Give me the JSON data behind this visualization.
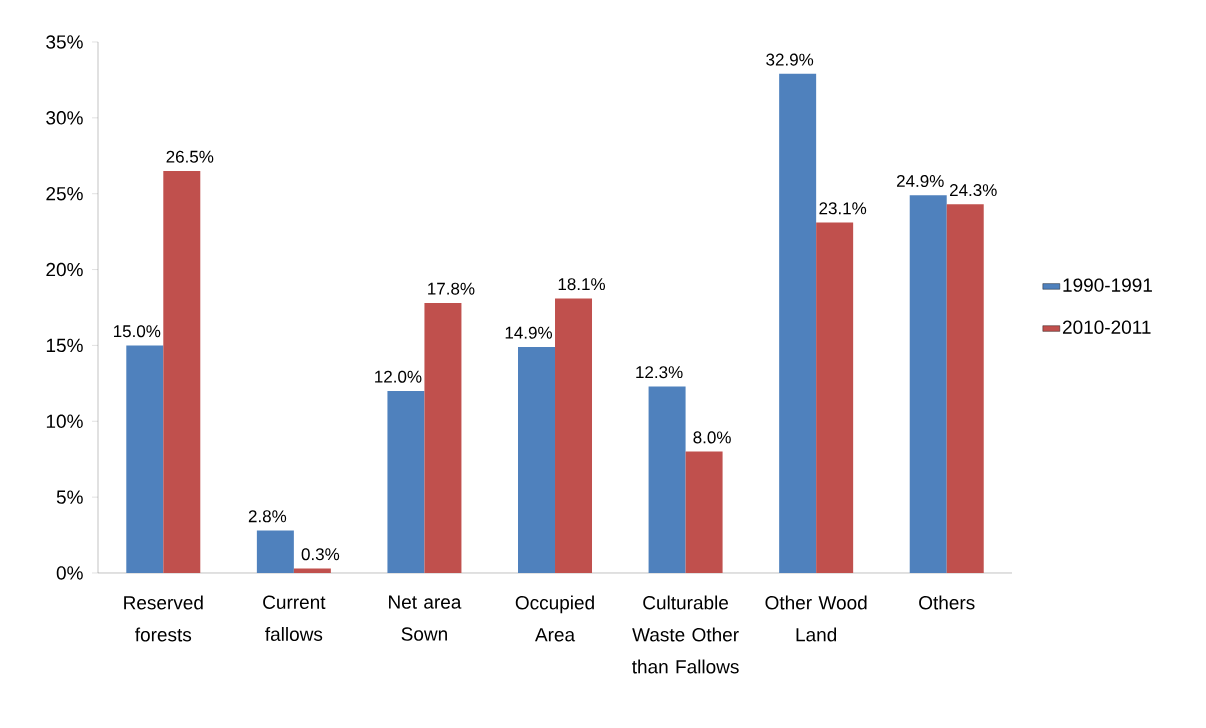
{
  "chart_data": {
    "type": "bar",
    "categories": [
      "Reserved forests",
      "Current fallows",
      "Net area Sown",
      "Occupied Area",
      "Culturable Waste Other than Fallows",
      "Other Wood Land",
      "Others"
    ],
    "series": [
      {
        "name": "1990-1991",
        "color": "#4f81bd",
        "values": [
          15.0,
          2.8,
          12.0,
          14.9,
          12.3,
          32.9,
          24.9
        ],
        "value_labels": [
          "15.0%",
          "2.8%",
          "12.0%",
          "14.9%",
          "12.3%",
          "32.9%",
          "24.9%"
        ]
      },
      {
        "name": "2010-2011",
        "color": "#c0504d",
        "values": [
          26.5,
          0.3,
          17.8,
          18.1,
          8.0,
          23.1,
          24.3
        ],
        "value_labels": [
          "26.5%",
          "0.3%",
          "17.8%",
          "18.1%",
          "8.0%",
          "23.1%",
          "24.3%"
        ]
      }
    ],
    "ylim": [
      0,
      35
    ],
    "yticks": [
      {
        "value": 0,
        "label": "0%"
      },
      {
        "value": 5,
        "label": "5%"
      },
      {
        "value": 10,
        "label": "10%"
      },
      {
        "value": 15,
        "label": "15%"
      },
      {
        "value": 20,
        "label": "20%"
      },
      {
        "value": 25,
        "label": "25%"
      },
      {
        "value": 30,
        "label": "30%"
      },
      {
        "value": 35,
        "label": "35%"
      }
    ],
    "grid": false,
    "legend": "right"
  }
}
